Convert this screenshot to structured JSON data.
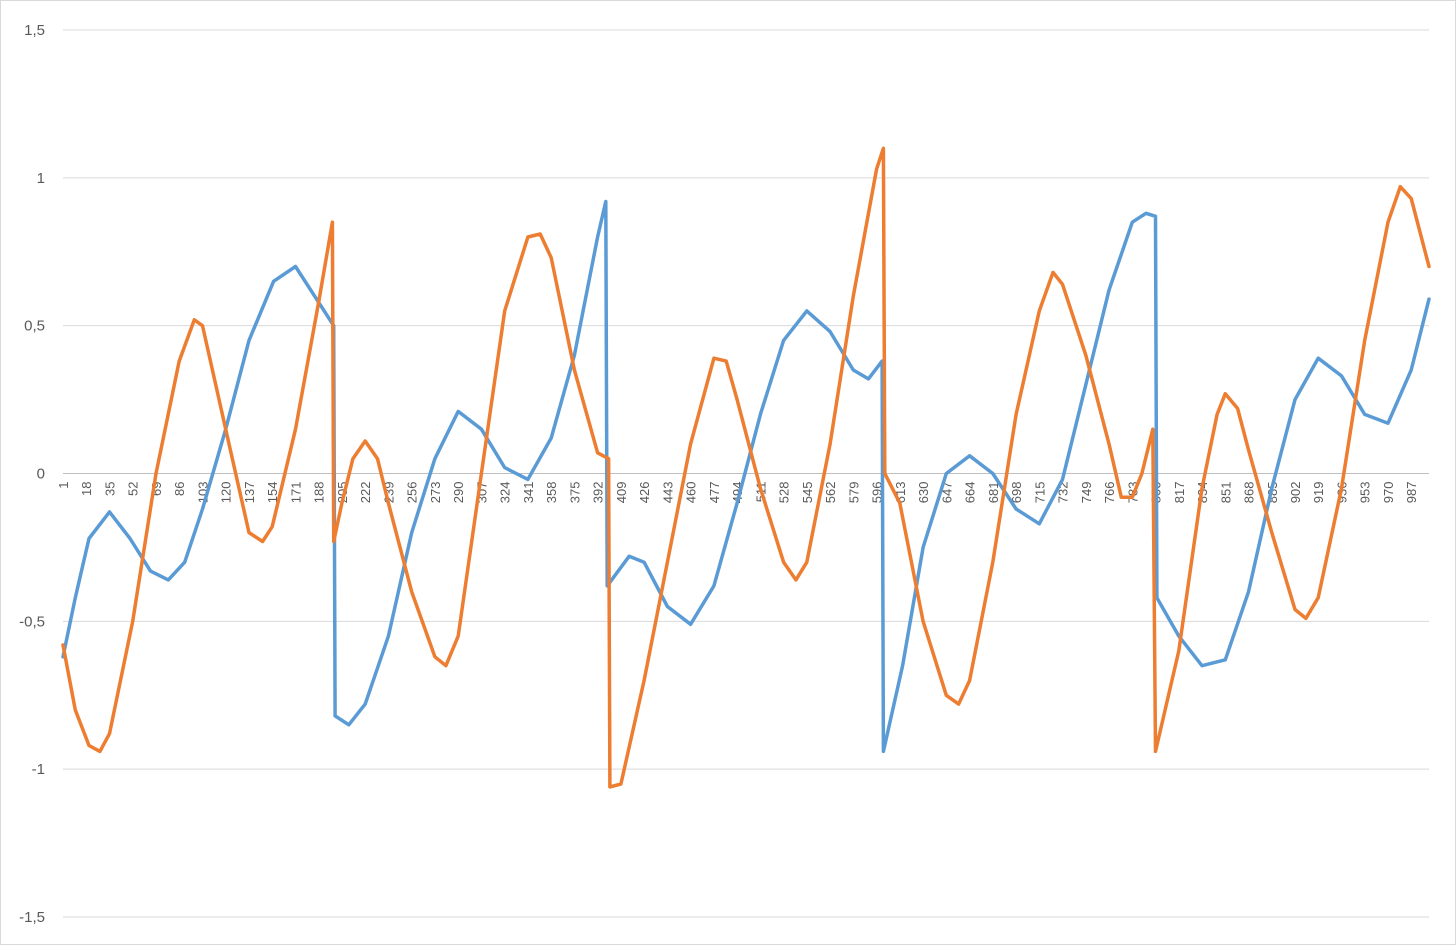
{
  "chart_data": {
    "type": "line",
    "title": "",
    "xlabel": "",
    "ylabel": "",
    "x_range": [
      1,
      1000
    ],
    "ylim": [
      -1.5,
      1.5
    ],
    "y_ticks": [
      1.5,
      1,
      0.5,
      0,
      -0.5,
      -1,
      -1.5
    ],
    "y_tick_labels": [
      "1,5",
      "1",
      "0,5",
      "0",
      "-0,5",
      "-1",
      "-1,5"
    ],
    "x_tick_labels": [
      "1",
      "18",
      "35",
      "52",
      "69",
      "86",
      "103",
      "120",
      "137",
      "154",
      "171",
      "188",
      "205",
      "222",
      "239",
      "256",
      "273",
      "290",
      "307",
      "324",
      "341",
      "358",
      "375",
      "392",
      "409",
      "426",
      "443",
      "460",
      "477",
      "494",
      "511",
      "528",
      "545",
      "562",
      "579",
      "596",
      "613",
      "630",
      "647",
      "664",
      "681",
      "698",
      "715",
      "732",
      "749",
      "766",
      "783",
      "800",
      "817",
      "834",
      "851",
      "868",
      "885",
      "902",
      "919",
      "936",
      "953",
      "970",
      "987"
    ],
    "grid": "horizontal",
    "legend": "none",
    "series": [
      {
        "color": "#5b9bd5",
        "points": [
          [
            1,
            -0.62
          ],
          [
            10,
            -0.42
          ],
          [
            20,
            -0.22
          ],
          [
            35,
            -0.13
          ],
          [
            50,
            -0.22
          ],
          [
            65,
            -0.33
          ],
          [
            78,
            -0.36
          ],
          [
            90,
            -0.3
          ],
          [
            103,
            -0.12
          ],
          [
            120,
            0.15
          ],
          [
            137,
            0.45
          ],
          [
            155,
            0.65
          ],
          [
            171,
            0.7
          ],
          [
            185,
            0.6
          ],
          [
            199,
            0.5
          ],
          [
            200,
            -0.82
          ],
          [
            210,
            -0.85
          ],
          [
            222,
            -0.78
          ],
          [
            239,
            -0.55
          ],
          [
            256,
            -0.2
          ],
          [
            273,
            0.05
          ],
          [
            290,
            0.21
          ],
          [
            307,
            0.15
          ],
          [
            324,
            0.02
          ],
          [
            341,
            -0.02
          ],
          [
            358,
            0.12
          ],
          [
            375,
            0.4
          ],
          [
            392,
            0.8
          ],
          [
            398,
            0.92
          ],
          [
            399,
            -0.38
          ],
          [
            415,
            -0.28
          ],
          [
            426,
            -0.3
          ],
          [
            443,
            -0.45
          ],
          [
            460,
            -0.51
          ],
          [
            477,
            -0.38
          ],
          [
            494,
            -0.1
          ],
          [
            511,
            0.2
          ],
          [
            528,
            0.45
          ],
          [
            545,
            0.55
          ],
          [
            562,
            0.48
          ],
          [
            579,
            0.35
          ],
          [
            590,
            0.32
          ],
          [
            600,
            0.38
          ],
          [
            601,
            -0.94
          ],
          [
            615,
            -0.65
          ],
          [
            630,
            -0.25
          ],
          [
            647,
            0.0
          ],
          [
            664,
            0.06
          ],
          [
            681,
            0.0
          ],
          [
            698,
            -0.12
          ],
          [
            715,
            -0.17
          ],
          [
            732,
            -0.02
          ],
          [
            749,
            0.3
          ],
          [
            766,
            0.62
          ],
          [
            783,
            0.85
          ],
          [
            793,
            0.88
          ],
          [
            800,
            0.87
          ],
          [
            801,
            -0.42
          ],
          [
            817,
            -0.55
          ],
          [
            834,
            -0.65
          ],
          [
            851,
            -0.63
          ],
          [
            868,
            -0.4
          ],
          [
            885,
            -0.05
          ],
          [
            902,
            0.25
          ],
          [
            919,
            0.39
          ],
          [
            936,
            0.33
          ],
          [
            953,
            0.2
          ],
          [
            970,
            0.17
          ],
          [
            987,
            0.35
          ],
          [
            1000,
            0.59
          ]
        ]
      },
      {
        "color": "#ed7d31",
        "points": [
          [
            1,
            -0.58
          ],
          [
            10,
            -0.8
          ],
          [
            20,
            -0.92
          ],
          [
            28,
            -0.94
          ],
          [
            35,
            -0.88
          ],
          [
            52,
            -0.5
          ],
          [
            69,
            0.0
          ],
          [
            86,
            0.38
          ],
          [
            97,
            0.52
          ],
          [
            103,
            0.5
          ],
          [
            120,
            0.15
          ],
          [
            137,
            -0.2
          ],
          [
            147,
            -0.23
          ],
          [
            154,
            -0.18
          ],
          [
            171,
            0.15
          ],
          [
            188,
            0.58
          ],
          [
            198,
            0.85
          ],
          [
            199,
            -0.23
          ],
          [
            205,
            -0.1
          ],
          [
            213,
            0.05
          ],
          [
            222,
            0.11
          ],
          [
            231,
            0.05
          ],
          [
            239,
            -0.1
          ],
          [
            256,
            -0.4
          ],
          [
            273,
            -0.62
          ],
          [
            281,
            -0.65
          ],
          [
            290,
            -0.55
          ],
          [
            307,
            0.0
          ],
          [
            324,
            0.55
          ],
          [
            341,
            0.8
          ],
          [
            350,
            0.81
          ],
          [
            358,
            0.73
          ],
          [
            375,
            0.35
          ],
          [
            392,
            0.07
          ],
          [
            400,
            0.05
          ],
          [
            401,
            -1.06
          ],
          [
            409,
            -1.05
          ],
          [
            426,
            -0.7
          ],
          [
            443,
            -0.3
          ],
          [
            460,
            0.1
          ],
          [
            477,
            0.39
          ],
          [
            486,
            0.38
          ],
          [
            494,
            0.25
          ],
          [
            511,
            -0.05
          ],
          [
            528,
            -0.3
          ],
          [
            537,
            -0.36
          ],
          [
            545,
            -0.3
          ],
          [
            562,
            0.1
          ],
          [
            579,
            0.6
          ],
          [
            596,
            1.03
          ],
          [
            601,
            1.1
          ],
          [
            602,
            0.0
          ],
          [
            613,
            -0.1
          ],
          [
            630,
            -0.5
          ],
          [
            647,
            -0.75
          ],
          [
            656,
            -0.78
          ],
          [
            664,
            -0.7
          ],
          [
            681,
            -0.3
          ],
          [
            698,
            0.2
          ],
          [
            715,
            0.55
          ],
          [
            725,
            0.68
          ],
          [
            732,
            0.64
          ],
          [
            749,
            0.4
          ],
          [
            766,
            0.1
          ],
          [
            775,
            -0.08
          ],
          [
            783,
            -0.08
          ],
          [
            790,
            0.0
          ],
          [
            798,
            0.15
          ],
          [
            800,
            -0.94
          ],
          [
            817,
            -0.6
          ],
          [
            834,
            -0.05
          ],
          [
            845,
            0.2
          ],
          [
            851,
            0.27
          ],
          [
            860,
            0.22
          ],
          [
            868,
            0.08
          ],
          [
            885,
            -0.2
          ],
          [
            902,
            -0.46
          ],
          [
            910,
            -0.49
          ],
          [
            919,
            -0.42
          ],
          [
            936,
            -0.05
          ],
          [
            953,
            0.45
          ],
          [
            970,
            0.85
          ],
          [
            979,
            0.97
          ],
          [
            987,
            0.93
          ],
          [
            1000,
            0.7
          ]
        ]
      }
    ]
  }
}
